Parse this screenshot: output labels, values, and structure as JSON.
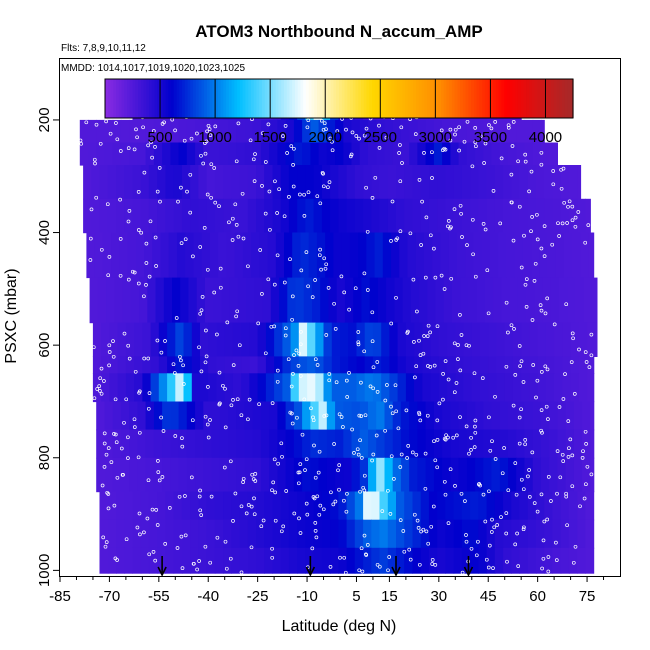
{
  "chart_data": {
    "type": "heatmap",
    "title": "ATOM3 Northbound N_accum_AMP",
    "flights_label": "Flts: 7,8,9,10,11,12",
    "dates_label": "MMDD: 1014,1017,1019,1020,1023,1025",
    "xlabel": "Latitude (deg N)",
    "ylabel": "PSXC (mbar)",
    "xlim": [
      -85,
      85
    ],
    "ylim": [
      1010,
      90
    ],
    "x_ticks": [
      -85,
      -70,
      -55,
      -40,
      -25,
      -10,
      5,
      15,
      30,
      45,
      60,
      75
    ],
    "x_tick_labels": [
      "-85",
      "-70",
      "-55",
      "-40",
      "-25",
      "-10",
      "5",
      "15",
      "30",
      "45",
      "60",
      "75"
    ],
    "y_ticks": [
      200,
      400,
      600,
      800,
      1000
    ],
    "y_tick_labels": [
      "200",
      "400",
      "600",
      "800",
      "1000"
    ],
    "colorbar": {
      "range": [
        0,
        4250
      ],
      "ticks": [
        500,
        1000,
        1500,
        2000,
        2500,
        3000,
        3500,
        4000
      ],
      "tick_labels": [
        "500",
        "1000",
        "1500",
        "2000",
        "2500",
        "3000",
        "3500",
        "4000"
      ],
      "colors": [
        "#8a2be2",
        "#0000cd",
        "#00bfff",
        "#ffffff",
        "#ffd700",
        "#ff8c00",
        "#ff0000",
        "#a52a2a"
      ]
    },
    "cell_lat_step": 2.5,
    "rows": [
      {
        "p_top": 170,
        "p_bot": 200,
        "lat_min": -63,
        "lat_max": 55,
        "values": [
          [
            -63,
            250
          ],
          [
            -50,
            250
          ],
          [
            -35,
            400
          ],
          [
            -20,
            300
          ],
          [
            -12,
            800
          ],
          [
            -7,
            1800
          ],
          [
            -3,
            1000
          ],
          [
            0,
            500
          ],
          [
            10,
            300
          ],
          [
            20,
            300
          ],
          [
            35,
            300
          ],
          [
            55,
            250
          ]
        ]
      },
      {
        "p_top": 200,
        "p_bot": 240,
        "lat_min": -79,
        "lat_max": 62,
        "values": [
          [
            -79,
            250
          ],
          [
            -60,
            250
          ],
          [
            -40,
            300
          ],
          [
            -25,
            350
          ],
          [
            -15,
            500
          ],
          [
            -8,
            900
          ],
          [
            -3,
            700
          ],
          [
            2,
            500
          ],
          [
            12,
            400
          ],
          [
            22,
            350
          ],
          [
            32,
            300
          ],
          [
            50,
            250
          ],
          [
            62,
            250
          ]
        ]
      },
      {
        "p_top": 240,
        "p_bot": 280,
        "lat_min": -79,
        "lat_max": 66,
        "values": [
          [
            -79,
            250
          ],
          [
            -60,
            300
          ],
          [
            -48,
            600
          ],
          [
            -40,
            350
          ],
          [
            -25,
            400
          ],
          [
            -12,
            700
          ],
          [
            -5,
            550
          ],
          [
            0,
            600
          ],
          [
            8,
            400
          ],
          [
            20,
            350
          ],
          [
            30,
            700
          ],
          [
            36,
            400
          ],
          [
            50,
            300
          ],
          [
            66,
            250
          ]
        ]
      },
      {
        "p_top": 280,
        "p_bot": 340,
        "lat_min": -78,
        "lat_max": 73,
        "values": [
          [
            -78,
            250
          ],
          [
            -60,
            350
          ],
          [
            -50,
            500
          ],
          [
            -40,
            300
          ],
          [
            -25,
            350
          ],
          [
            -15,
            600
          ],
          [
            -8,
            600
          ],
          [
            -2,
            500
          ],
          [
            5,
            400
          ],
          [
            15,
            350
          ],
          [
            30,
            400
          ],
          [
            45,
            350
          ],
          [
            60,
            280
          ],
          [
            73,
            250
          ]
        ]
      },
      {
        "p_top": 340,
        "p_bot": 400,
        "lat_min": -78,
        "lat_max": 76,
        "values": [
          [
            -78,
            250
          ],
          [
            -60,
            300
          ],
          [
            -45,
            400
          ],
          [
            -30,
            350
          ],
          [
            -18,
            500
          ],
          [
            -10,
            700
          ],
          [
            -4,
            600
          ],
          [
            0,
            550
          ],
          [
            8,
            500
          ],
          [
            20,
            400
          ],
          [
            35,
            350
          ],
          [
            50,
            300
          ],
          [
            65,
            280
          ],
          [
            76,
            250
          ]
        ]
      },
      {
        "p_top": 400,
        "p_bot": 480,
        "lat_min": -77,
        "lat_max": 77,
        "values": [
          [
            -77,
            250
          ],
          [
            -60,
            300
          ],
          [
            -48,
            450
          ],
          [
            -35,
            350
          ],
          [
            -20,
            450
          ],
          [
            -12,
            750
          ],
          [
            -5,
            650
          ],
          [
            0,
            550
          ],
          [
            6,
            600
          ],
          [
            12,
            700
          ],
          [
            20,
            450
          ],
          [
            35,
            350
          ],
          [
            50,
            300
          ],
          [
            65,
            280
          ],
          [
            77,
            250
          ]
        ]
      },
      {
        "p_top": 480,
        "p_bot": 560,
        "lat_min": -76,
        "lat_max": 78,
        "values": [
          [
            -76,
            250
          ],
          [
            -60,
            300
          ],
          [
            -50,
            600
          ],
          [
            -40,
            350
          ],
          [
            -22,
            400
          ],
          [
            -14,
            800
          ],
          [
            -7,
            700
          ],
          [
            0,
            500
          ],
          [
            8,
            650
          ],
          [
            14,
            550
          ],
          [
            22,
            450
          ],
          [
            35,
            350
          ],
          [
            50,
            300
          ],
          [
            65,
            280
          ],
          [
            78,
            250
          ]
        ]
      },
      {
        "p_top": 560,
        "p_bot": 620,
        "lat_min": -75,
        "lat_max": 78,
        "values": [
          [
            -75,
            250
          ],
          [
            -58,
            350
          ],
          [
            -48,
            850
          ],
          [
            -42,
            400
          ],
          [
            -25,
            450
          ],
          [
            -14,
            1000
          ],
          [
            -11,
            1800
          ],
          [
            -8,
            1300
          ],
          [
            -3,
            700
          ],
          [
            4,
            650
          ],
          [
            10,
            850
          ],
          [
            18,
            500
          ],
          [
            30,
            400
          ],
          [
            45,
            350
          ],
          [
            60,
            300
          ],
          [
            78,
            250
          ]
        ]
      },
      {
        "p_top": 620,
        "p_bot": 650,
        "lat_min": -75,
        "lat_max": 77,
        "values": [
          [
            -75,
            250
          ],
          [
            -55,
            400
          ],
          [
            -48,
            700
          ],
          [
            -40,
            400
          ],
          [
            -25,
            350
          ],
          [
            -15,
            800
          ],
          [
            -8,
            900
          ],
          [
            -2,
            700
          ],
          [
            6,
            600
          ],
          [
            12,
            700
          ],
          [
            20,
            500
          ],
          [
            35,
            400
          ],
          [
            50,
            350
          ],
          [
            65,
            300
          ],
          [
            77,
            250
          ]
        ]
      },
      {
        "p_top": 650,
        "p_bot": 700,
        "lat_min": -75,
        "lat_max": 77,
        "values": [
          [
            -75,
            250
          ],
          [
            -60,
            450
          ],
          [
            -52,
            1200
          ],
          [
            -48,
            1800
          ],
          [
            -44,
            500
          ],
          [
            -30,
            400
          ],
          [
            -16,
            900
          ],
          [
            -12,
            1700
          ],
          [
            -7,
            1800
          ],
          [
            -3,
            900
          ],
          [
            4,
            900
          ],
          [
            10,
            1000
          ],
          [
            16,
            800
          ],
          [
            25,
            500
          ],
          [
            40,
            400
          ],
          [
            55,
            350
          ],
          [
            77,
            250
          ]
        ]
      },
      {
        "p_top": 700,
        "p_bot": 750,
        "lat_min": -74,
        "lat_max": 77,
        "values": [
          [
            -74,
            250
          ],
          [
            -60,
            400
          ],
          [
            -52,
            800
          ],
          [
            -48,
            700
          ],
          [
            -40,
            400
          ],
          [
            -20,
            500
          ],
          [
            -12,
            900
          ],
          [
            -5,
            1700
          ],
          [
            -2,
            900
          ],
          [
            6,
            850
          ],
          [
            12,
            1000
          ],
          [
            18,
            700
          ],
          [
            30,
            500
          ],
          [
            45,
            400
          ],
          [
            60,
            350
          ],
          [
            77,
            250
          ]
        ]
      },
      {
        "p_top": 750,
        "p_bot": 800,
        "lat_min": -74,
        "lat_max": 77,
        "values": [
          [
            -74,
            250
          ],
          [
            -55,
            350
          ],
          [
            -40,
            400
          ],
          [
            -25,
            450
          ],
          [
            -15,
            600
          ],
          [
            -8,
            750
          ],
          [
            0,
            700
          ],
          [
            7,
            900
          ],
          [
            12,
            800
          ],
          [
            20,
            650
          ],
          [
            35,
            500
          ],
          [
            50,
            450
          ],
          [
            65,
            350
          ],
          [
            77,
            250
          ]
        ]
      },
      {
        "p_top": 800,
        "p_bot": 860,
        "lat_min": -74,
        "lat_max": 77,
        "values": [
          [
            -74,
            250
          ],
          [
            -55,
            300
          ],
          [
            -40,
            350
          ],
          [
            -25,
            400
          ],
          [
            -10,
            650
          ],
          [
            2,
            550
          ],
          [
            8,
            800
          ],
          [
            12,
            1600
          ],
          [
            16,
            1000
          ],
          [
            22,
            700
          ],
          [
            35,
            550
          ],
          [
            48,
            700
          ],
          [
            60,
            400
          ],
          [
            77,
            250
          ]
        ]
      },
      {
        "p_top": 860,
        "p_bot": 910,
        "lat_min": -73,
        "lat_max": 77,
        "values": [
          [
            -73,
            250
          ],
          [
            -55,
            300
          ],
          [
            -40,
            400
          ],
          [
            -25,
            450
          ],
          [
            -12,
            550
          ],
          [
            0,
            650
          ],
          [
            6,
            1000
          ],
          [
            9,
            2000
          ],
          [
            13,
            1400
          ],
          [
            18,
            900
          ],
          [
            28,
            600
          ],
          [
            42,
            700
          ],
          [
            52,
            500
          ],
          [
            65,
            350
          ],
          [
            77,
            250
          ]
        ]
      },
      {
        "p_top": 910,
        "p_bot": 960,
        "lat_min": -73,
        "lat_max": 77,
        "values": [
          [
            -73,
            250
          ],
          [
            -55,
            300
          ],
          [
            -40,
            350
          ],
          [
            -25,
            450
          ],
          [
            -12,
            550
          ],
          [
            0,
            600
          ],
          [
            8,
            900
          ],
          [
            13,
            1000
          ],
          [
            20,
            800
          ],
          [
            30,
            550
          ],
          [
            40,
            650
          ],
          [
            48,
            450
          ],
          [
            65,
            350
          ],
          [
            77,
            250
          ]
        ]
      },
      {
        "p_top": 960,
        "p_bot": 1005,
        "lat_min": -73,
        "lat_max": 77,
        "values": [
          [
            -73,
            250
          ],
          [
            -55,
            300
          ],
          [
            -40,
            350
          ],
          [
            -25,
            400
          ],
          [
            -12,
            500
          ],
          [
            0,
            550
          ],
          [
            8,
            700
          ],
          [
            13,
            800
          ],
          [
            20,
            650
          ],
          [
            30,
            500
          ],
          [
            42,
            600
          ],
          [
            50,
            400
          ],
          [
            65,
            300
          ],
          [
            77,
            250
          ]
        ]
      }
    ],
    "arrow_latitudes": [
      -54,
      -9,
      17,
      39
    ],
    "point_count": 900,
    "point_color": "#ffffff",
    "grid": false,
    "legend": "top (colorbar)"
  }
}
